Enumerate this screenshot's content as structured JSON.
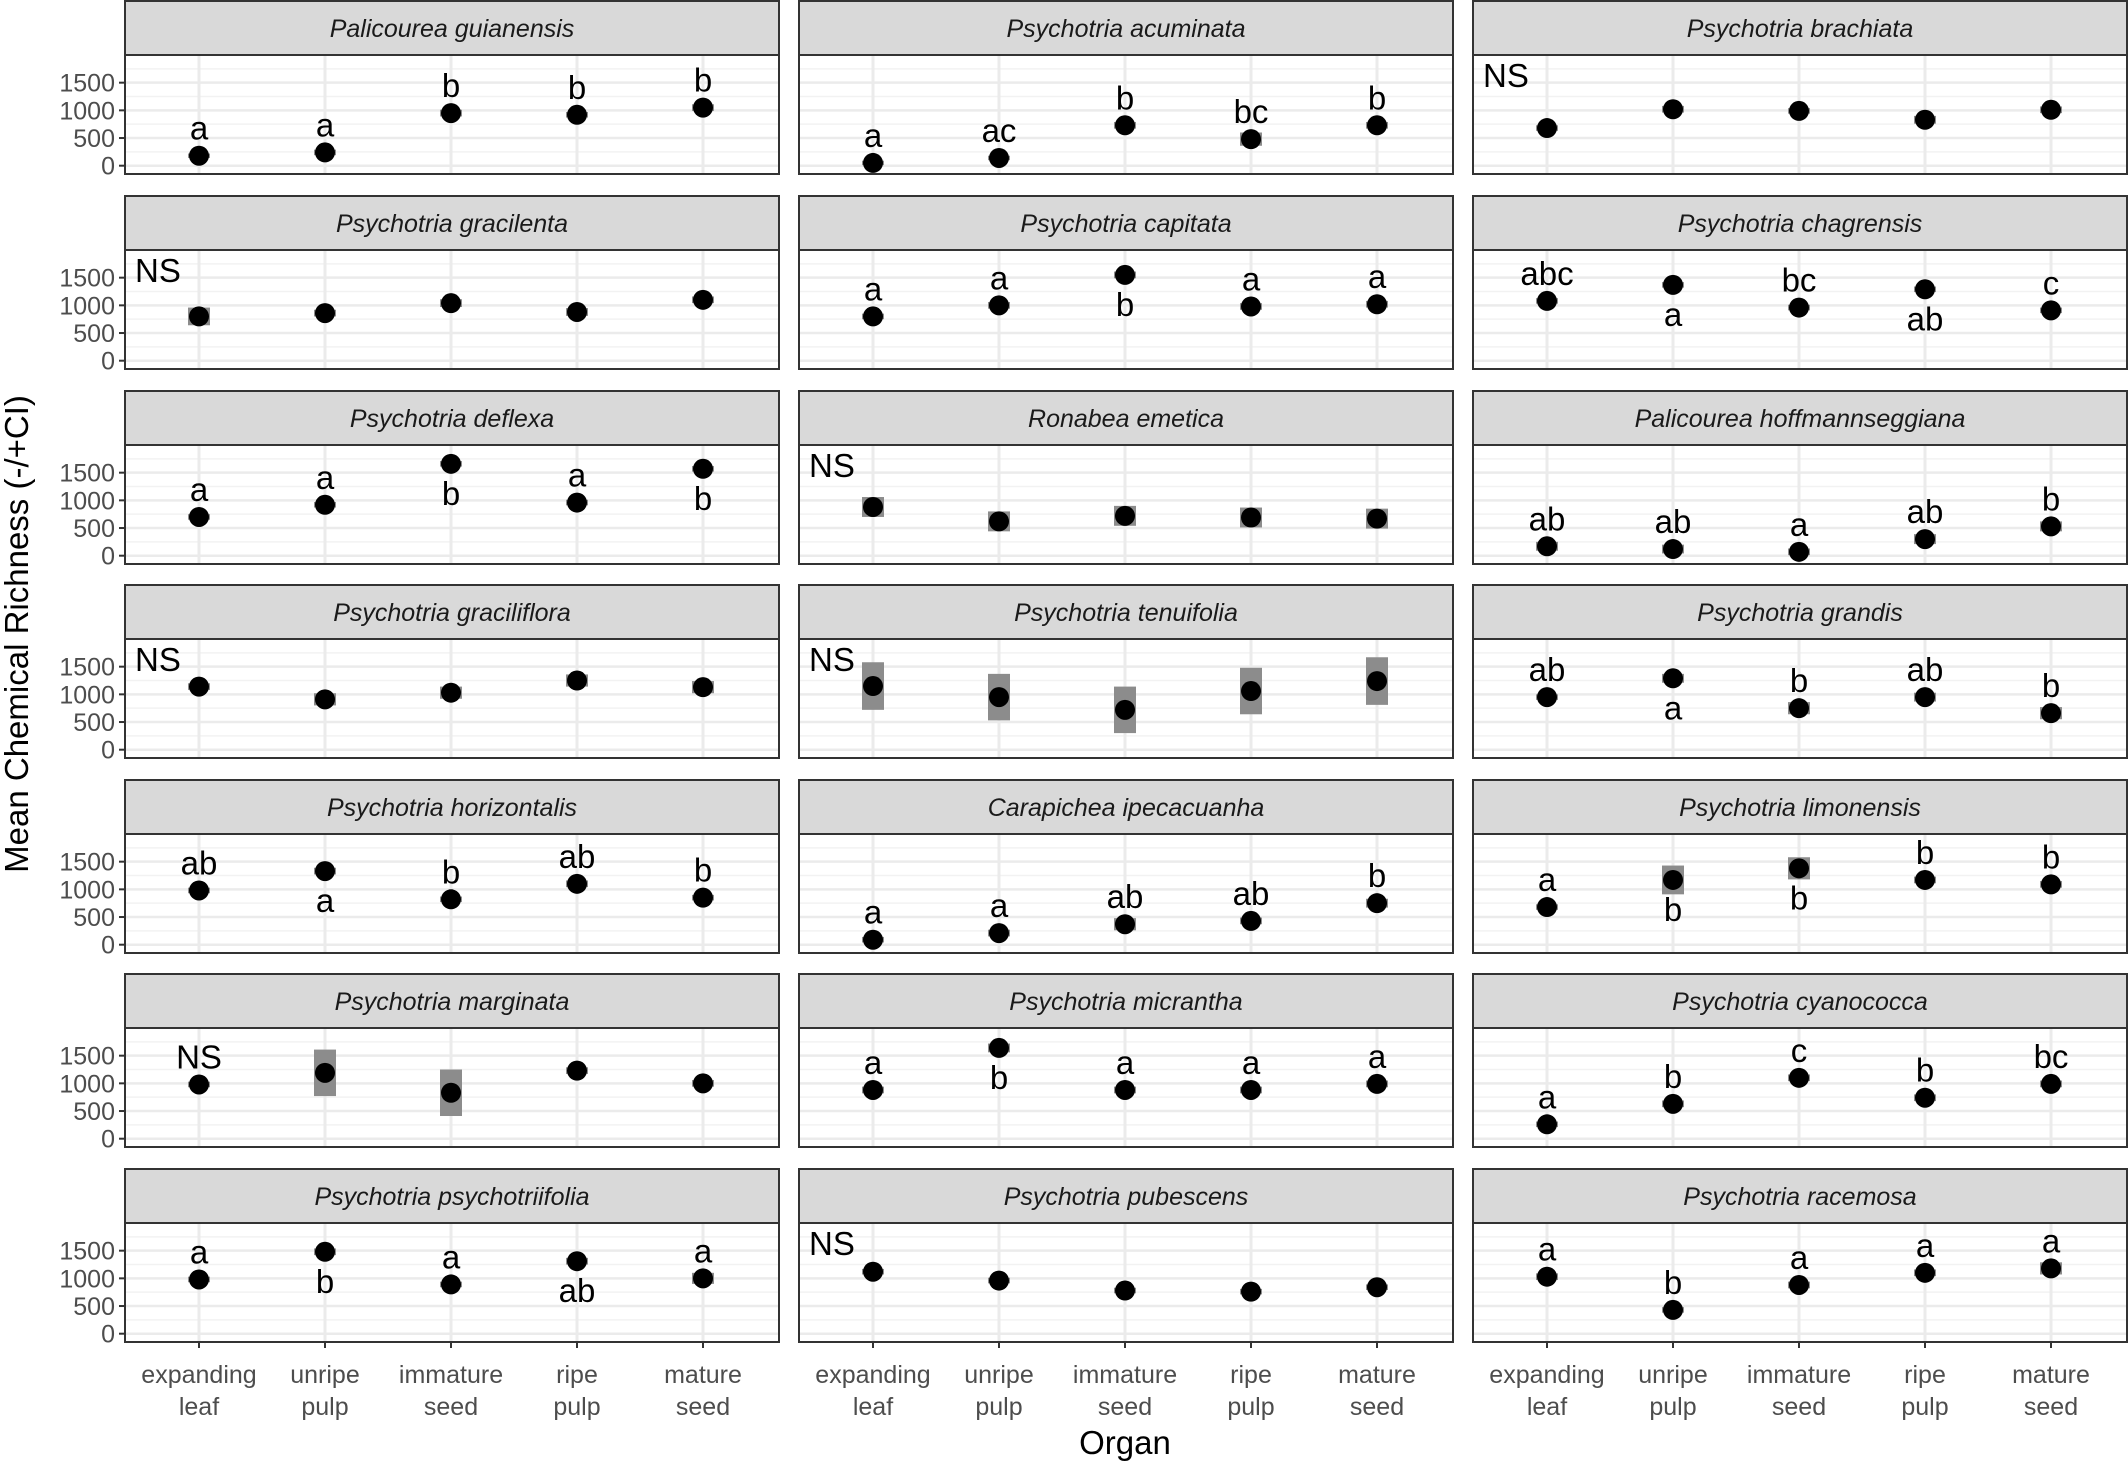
{
  "chart_data": {
    "type": "scatter",
    "xlabel": "Organ",
    "ylabel": "Mean Chemical Richness (-/+CI)",
    "categories": [
      "expanding leaf",
      "unripe pulp",
      "immature seed",
      "ripe pulp",
      "mature seed"
    ],
    "ylim": [
      -150,
      2000
    ],
    "yticks": [
      0,
      500,
      1000,
      1500
    ],
    "grid": true,
    "facets": [
      {
        "title": "Palicourea guianensis",
        "values": [
          180,
          240,
          950,
          920,
          1050
        ],
        "ci": [
          40,
          50,
          60,
          50,
          60
        ],
        "letters": [
          "a",
          "a",
          "b",
          "b",
          "b"
        ],
        "letter_pos": [
          "above",
          "above",
          "above",
          "above",
          "above"
        ]
      },
      {
        "title": "Psychotria acuminata",
        "values": [
          50,
          140,
          730,
          480,
          730
        ],
        "ci": [
          40,
          40,
          60,
          120,
          60
        ],
        "letters": [
          "a",
          "ac",
          "b",
          "bc",
          "b"
        ],
        "letter_pos": [
          "above",
          "above",
          "above",
          "above",
          "above"
        ]
      },
      {
        "title": "Psychotria brachiata",
        "values": [
          680,
          1020,
          990,
          830,
          1010
        ],
        "ci": [
          50,
          60,
          50,
          70,
          60
        ],
        "letters": [
          "NS",
          "",
          "",
          "",
          ""
        ],
        "letter_pos": [
          "corner",
          "",
          "",
          "",
          ""
        ]
      },
      {
        "title": "Psychotria gracilenta",
        "values": [
          800,
          860,
          1040,
          880,
          1100
        ],
        "ci": [
          160,
          60,
          70,
          70,
          60
        ],
        "letters": [
          "NS",
          "",
          "",
          "",
          ""
        ],
        "letter_pos": [
          "corner",
          "",
          "",
          "",
          ""
        ]
      },
      {
        "title": "Psychotria capitata",
        "values": [
          800,
          1000,
          1550,
          980,
          1020
        ],
        "ci": [
          50,
          60,
          60,
          60,
          60
        ],
        "letters": [
          "a",
          "a",
          "b",
          "a",
          "a"
        ],
        "letter_pos": [
          "above",
          "above",
          "below",
          "above",
          "above"
        ]
      },
      {
        "title": "Psychotria chagrensis",
        "values": [
          1080,
          1370,
          960,
          1290,
          910
        ],
        "ci": [
          50,
          50,
          50,
          50,
          50
        ],
        "letters": [
          "abc",
          "a",
          "bc",
          "ab",
          "c"
        ],
        "letter_pos": [
          "above",
          "below",
          "above",
          "below",
          "above"
        ]
      },
      {
        "title": "Psychotria deflexa",
        "values": [
          700,
          920,
          1660,
          960,
          1570
        ],
        "ci": [
          50,
          50,
          50,
          50,
          50
        ],
        "letters": [
          "a",
          "a",
          "b",
          "a",
          "b"
        ],
        "letter_pos": [
          "above",
          "above",
          "below",
          "above",
          "below"
        ]
      },
      {
        "title": "Ronabea emetica",
        "values": [
          880,
          620,
          720,
          690,
          670
        ],
        "ci": [
          180,
          180,
          180,
          180,
          180
        ],
        "letters": [
          "NS",
          "",
          "",
          "",
          ""
        ],
        "letter_pos": [
          "corner",
          "",
          "",
          "",
          ""
        ]
      },
      {
        "title": "Palicourea hoffmannseggiana",
        "values": [
          170,
          120,
          70,
          300,
          530
        ],
        "ci": [
          80,
          80,
          60,
          90,
          90
        ],
        "letters": [
          "ab",
          "ab",
          "a",
          "ab",
          "b"
        ],
        "letter_pos": [
          "above",
          "above",
          "above",
          "above",
          "above"
        ]
      },
      {
        "title": "Psychotria graciliflora",
        "values": [
          1140,
          910,
          1030,
          1250,
          1130
        ],
        "ci": [
          60,
          110,
          110,
          110,
          110
        ],
        "letters": [
          "NS",
          "",
          "",
          "",
          ""
        ],
        "letter_pos": [
          "corner",
          "",
          "",
          "",
          ""
        ]
      },
      {
        "title": "Psychotria tenuifolia",
        "values": [
          1150,
          950,
          720,
          1060,
          1240
        ],
        "ci": [
          430,
          420,
          420,
          420,
          430
        ],
        "letters": [
          "NS",
          "",
          "",
          "",
          ""
        ],
        "letter_pos": [
          "corner",
          "",
          "",
          "",
          ""
        ]
      },
      {
        "title": "Psychotria grandis",
        "values": [
          950,
          1290,
          750,
          950,
          660
        ],
        "ci": [
          50,
          80,
          110,
          80,
          110
        ],
        "letters": [
          "ab",
          "a",
          "b",
          "ab",
          "b"
        ],
        "letter_pos": [
          "above",
          "below",
          "above",
          "above",
          "above"
        ]
      },
      {
        "title": "Psychotria horizontalis",
        "values": [
          980,
          1330,
          820,
          1100,
          850
        ],
        "ci": [
          50,
          60,
          50,
          60,
          50
        ],
        "letters": [
          "ab",
          "a",
          "b",
          "ab",
          "b"
        ],
        "letter_pos": [
          "above",
          "below",
          "above",
          "above",
          "above"
        ]
      },
      {
        "title": "Carapichea ipecacuanha",
        "values": [
          90,
          210,
          370,
          430,
          750
        ],
        "ci": [
          50,
          60,
          110,
          60,
          80
        ],
        "letters": [
          "a",
          "a",
          "ab",
          "ab",
          "b"
        ],
        "letter_pos": [
          "above",
          "above",
          "above",
          "above",
          "above"
        ]
      },
      {
        "title": "Psychotria limonensis",
        "values": [
          680,
          1170,
          1380,
          1170,
          1090
        ],
        "ci": [
          50,
          260,
          200,
          60,
          60
        ],
        "letters": [
          "a",
          "b",
          "b",
          "b",
          "b"
        ],
        "letter_pos": [
          "above",
          "below",
          "below",
          "above",
          "above"
        ]
      },
      {
        "title": "Psychotria marginata",
        "values": [
          980,
          1190,
          830,
          1230,
          1000
        ],
        "ci": [
          50,
          420,
          420,
          60,
          60
        ],
        "letters": [
          "NS",
          "",
          "",
          "",
          ""
        ],
        "letter_pos": [
          "above",
          "",
          "",
          "",
          ""
        ]
      },
      {
        "title": "Psychotria micrantha",
        "values": [
          880,
          1640,
          880,
          880,
          990
        ],
        "ci": [
          60,
          80,
          60,
          60,
          60
        ],
        "letters": [
          "a",
          "b",
          "a",
          "a",
          "a"
        ],
        "letter_pos": [
          "above",
          "below",
          "above",
          "above",
          "above"
        ]
      },
      {
        "title": "Psychotria cyanococca",
        "values": [
          260,
          630,
          1100,
          740,
          990
        ],
        "ci": [
          50,
          60,
          60,
          60,
          60
        ],
        "letters": [
          "a",
          "b",
          "c",
          "b",
          "bc"
        ],
        "letter_pos": [
          "above",
          "above",
          "above",
          "above",
          "above"
        ]
      },
      {
        "title": "Psychotria psychotriifolia",
        "values": [
          980,
          1480,
          890,
          1310,
          1000
        ],
        "ci": [
          50,
          60,
          50,
          60,
          100
        ],
        "letters": [
          "a",
          "b",
          "a",
          "ab",
          "a"
        ],
        "letter_pos": [
          "above",
          "below",
          "above",
          "below",
          "above"
        ]
      },
      {
        "title": "Psychotria pubescens",
        "values": [
          1120,
          960,
          780,
          760,
          840
        ],
        "ci": [
          50,
          50,
          50,
          50,
          50
        ],
        "letters": [
          "NS",
          "",
          "",
          "",
          ""
        ],
        "letter_pos": [
          "corner",
          "",
          "",
          "",
          ""
        ]
      },
      {
        "title": "Psychotria racemosa",
        "values": [
          1030,
          430,
          880,
          1100,
          1180
        ],
        "ci": [
          60,
          50,
          60,
          60,
          110
        ],
        "letters": [
          "a",
          "b",
          "a",
          "a",
          "a"
        ],
        "letter_pos": [
          "above",
          "above",
          "above",
          "above",
          "above"
        ]
      }
    ]
  }
}
